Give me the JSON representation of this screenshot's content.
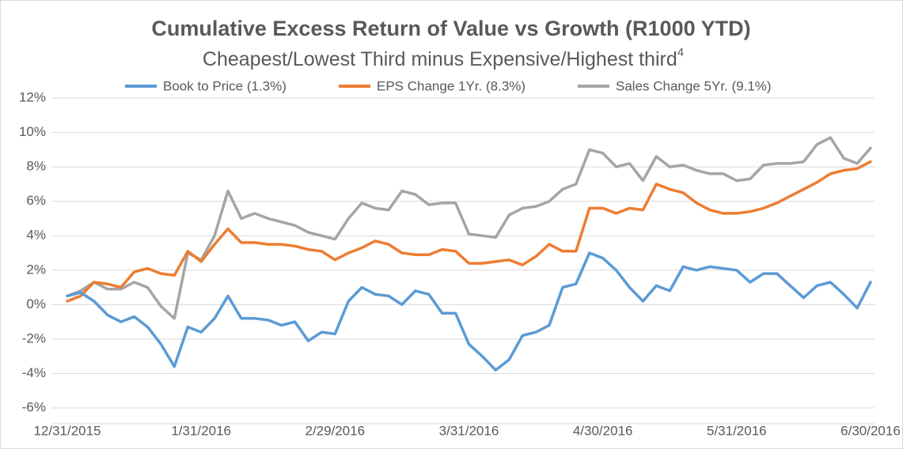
{
  "chart_data": {
    "type": "line",
    "title": "Cumulative Excess Return of Value vs Growth (R1000 YTD)",
    "subtitle": "Cheapest/Lowest Third minus Expensive/Highest third",
    "subtitle_note": "4",
    "categories": [
      "12/31/2015",
      null,
      null,
      null,
      null,
      null,
      null,
      null,
      null,
      null,
      "1/31/2016",
      null,
      null,
      null,
      null,
      null,
      null,
      null,
      null,
      null,
      "2/29/2016",
      null,
      null,
      null,
      null,
      null,
      null,
      null,
      null,
      null,
      "3/31/2016",
      null,
      null,
      null,
      null,
      null,
      null,
      null,
      null,
      null,
      "4/30/2016",
      null,
      null,
      null,
      null,
      null,
      null,
      null,
      null,
      null,
      "5/31/2016",
      null,
      null,
      null,
      null,
      null,
      null,
      null,
      null,
      null,
      "6/30/2016"
    ],
    "ylim": [
      -6,
      12
    ],
    "yticks": [
      {
        "value": -6,
        "label": "-6%"
      },
      {
        "value": -4,
        "label": "-4%"
      },
      {
        "value": -2,
        "label": "-2%"
      },
      {
        "value": 0,
        "label": "0%"
      },
      {
        "value": 2,
        "label": "2%"
      },
      {
        "value": 4,
        "label": "4%"
      },
      {
        "value": 6,
        "label": "6%"
      },
      {
        "value": 8,
        "label": "8%"
      },
      {
        "value": 10,
        "label": "10%"
      },
      {
        "value": 12,
        "label": "12%"
      }
    ],
    "grid": true,
    "legend": "top",
    "series": [
      {
        "name": "Book to Price (1.3%)",
        "color": "#5b9bd5",
        "values": [
          0.5,
          0.7,
          0.2,
          -0.6,
          -1.0,
          -0.7,
          -1.3,
          -2.3,
          -3.6,
          -1.3,
          -1.6,
          -0.8,
          0.5,
          -0.8,
          -0.8,
          -0.9,
          -1.2,
          -1.0,
          -2.1,
          -1.6,
          -1.7,
          0.2,
          1.0,
          0.6,
          0.5,
          0.0,
          0.8,
          0.6,
          -0.5,
          -0.5,
          -2.3,
          -3.0,
          -3.8,
          -3.2,
          -1.8,
          -1.6,
          -1.2,
          1.0,
          1.2,
          3.0,
          2.7,
          2.0,
          1.0,
          0.2,
          1.1,
          0.8,
          2.2,
          2.0,
          2.2,
          2.1,
          2.0,
          1.3,
          1.8,
          1.8,
          1.1,
          0.4,
          1.1,
          1.3,
          0.6,
          -0.2,
          1.3
        ]
      },
      {
        "name": "EPS Change 1Yr. (8.3%)",
        "color": "#ed7d31",
        "values": [
          0.2,
          0.5,
          1.3,
          1.2,
          1.0,
          1.9,
          2.1,
          1.8,
          1.7,
          3.1,
          2.5,
          3.5,
          4.4,
          3.6,
          3.6,
          3.5,
          3.5,
          3.4,
          3.2,
          3.1,
          2.6,
          3.0,
          3.3,
          3.7,
          3.5,
          3.0,
          2.9,
          2.9,
          3.2,
          3.1,
          2.4,
          2.4,
          2.5,
          2.6,
          2.3,
          2.8,
          3.5,
          3.1,
          3.1,
          5.6,
          5.6,
          5.3,
          5.6,
          5.5,
          7.0,
          6.7,
          6.5,
          5.9,
          5.5,
          5.3,
          5.3,
          5.4,
          5.6,
          5.9,
          6.3,
          6.7,
          7.1,
          7.6,
          7.8,
          7.9,
          8.3
        ]
      },
      {
        "name": "Sales Change 5Yr. (9.1%)",
        "color": "#a5a5a5",
        "values": [
          0.5,
          0.8,
          1.3,
          0.9,
          0.9,
          1.3,
          1.0,
          -0.1,
          -0.8,
          3.0,
          2.6,
          4.0,
          6.6,
          5.0,
          5.3,
          5.0,
          4.8,
          4.6,
          4.2,
          4.0,
          3.8,
          5.0,
          5.9,
          5.6,
          5.5,
          6.6,
          6.4,
          5.8,
          5.9,
          5.9,
          4.1,
          4.0,
          3.9,
          5.2,
          5.6,
          5.7,
          6.0,
          6.7,
          7.0,
          9.0,
          8.8,
          8.0,
          8.2,
          7.2,
          8.6,
          8.0,
          8.1,
          7.8,
          7.6,
          7.6,
          7.2,
          7.3,
          8.1,
          8.2,
          8.2,
          8.3,
          9.3,
          9.7,
          8.5,
          8.2,
          9.1
        ]
      }
    ]
  }
}
